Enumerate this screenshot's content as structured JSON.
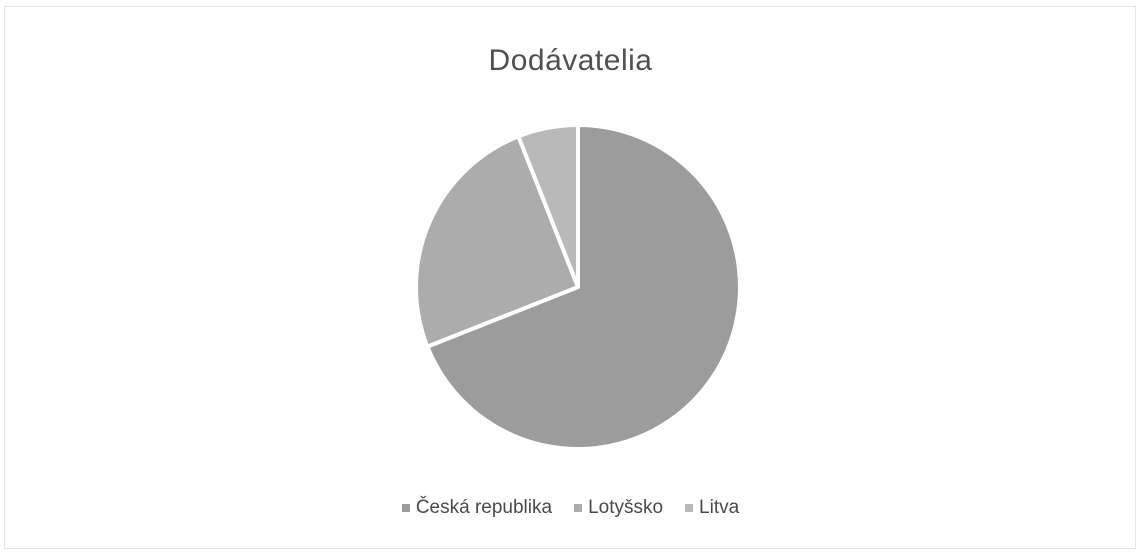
{
  "chart_data": {
    "type": "pie",
    "title": "Dodávatelia",
    "categories": [
      "Česká republika",
      "Lotyšsko",
      "Litva"
    ],
    "values": [
      69,
      25,
      6
    ],
    "colors": [
      "#9c9c9c",
      "#acacac",
      "#b9b9b9"
    ],
    "legend_position": "bottom",
    "start_angle_deg": 0,
    "direction": "clockwise"
  }
}
